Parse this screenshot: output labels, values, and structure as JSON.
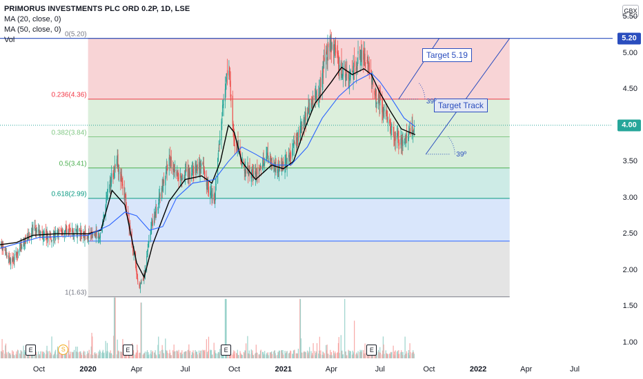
{
  "header": {
    "title": "PRIMORUS INVESTMENTS PLC ORD 0.2P, 1D, LSE",
    "studies": [
      "MA (20, close, 0)",
      "MA (50, close, 0)",
      "Vol"
    ]
  },
  "currency": "GBX",
  "price_axis": {
    "ticks": [
      "5.50",
      "5.00",
      "4.50",
      "4.00",
      "3.50",
      "3.00",
      "2.50",
      "2.00",
      "1.50",
      "1.00"
    ],
    "last_label": "4.00",
    "target_label": "5.20"
  },
  "time_axis": {
    "ticks": [
      {
        "label": "Oct",
        "bold": false
      },
      {
        "label": "2020",
        "bold": true
      },
      {
        "label": "Apr",
        "bold": false
      },
      {
        "label": "Jul",
        "bold": false
      },
      {
        "label": "Oct",
        "bold": false
      },
      {
        "label": "2021",
        "bold": true
      },
      {
        "label": "Apr",
        "bold": false
      },
      {
        "label": "Jul",
        "bold": false
      },
      {
        "label": "Oct",
        "bold": false
      },
      {
        "label": "2022",
        "bold": true
      },
      {
        "label": "Apr",
        "bold": false
      },
      {
        "label": "Jul",
        "bold": false
      }
    ]
  },
  "fib_levels": [
    {
      "label": "0(5.20)",
      "price": 5.2,
      "color": "#787b86"
    },
    {
      "label": "0.236(4.36)",
      "price": 4.36,
      "color": "#f23645"
    },
    {
      "label": "0.382(3.84)",
      "price": 3.84,
      "color": "#81c784"
    },
    {
      "label": "0.5(3.41)",
      "price": 3.41,
      "color": "#4caf50"
    },
    {
      "label": "0.618(2.99)",
      "price": 2.99,
      "color": "#089981"
    },
    {
      "label": "1(1.63)",
      "price": 1.63,
      "color": "#787b86"
    }
  ],
  "annotations": {
    "target": "Target 5.19",
    "track": "Target Track",
    "angle1": "39º",
    "angle2": "39º"
  },
  "events": [
    {
      "type": "E",
      "date": "2019-09"
    },
    {
      "type": "S",
      "date": "2019-11"
    },
    {
      "type": "E",
      "date": "2020-03"
    },
    {
      "type": "E",
      "date": "2020-09"
    },
    {
      "type": "E",
      "date": "2021-06"
    }
  ],
  "colors": {
    "up": "#26a69a",
    "down": "#ef5350",
    "ma20": "#000000",
    "ma50": "#2962ff",
    "drawing": "#2a4dbe"
  },
  "chart_data": {
    "type": "candlestick",
    "title": "PRIMORUS INVESTMENTS PLC ORD 0.2P, 1D, LSE",
    "x_range": [
      "2019-07-20",
      "2022-09-10"
    ],
    "y_range": [
      0.78,
      5.73
    ],
    "series": [
      {
        "name": "MA (20, close, 0)",
        "points": [
          [
            "2019-07-20",
            2.35
          ],
          [
            "2019-08-20",
            2.38
          ],
          [
            "2019-09-20",
            2.48
          ],
          [
            "2019-11-01",
            2.5
          ],
          [
            "2020-01-01",
            2.5
          ],
          [
            "2020-01-25",
            2.55
          ],
          [
            "2020-02-15",
            3.1
          ],
          [
            "2020-03-10",
            2.9
          ],
          [
            "2020-04-01",
            2.1
          ],
          [
            "2020-04-15",
            1.9
          ],
          [
            "2020-05-01",
            2.35
          ],
          [
            "2020-06-01",
            2.95
          ],
          [
            "2020-07-01",
            3.25
          ],
          [
            "2020-08-01",
            3.3
          ],
          [
            "2020-08-20",
            3.2
          ],
          [
            "2020-09-05",
            3.5
          ],
          [
            "2020-09-20",
            4.0
          ],
          [
            "2020-10-01",
            3.9
          ],
          [
            "2020-10-15",
            3.5
          ],
          [
            "2020-11-10",
            3.25
          ],
          [
            "2020-12-10",
            3.45
          ],
          [
            "2021-01-01",
            3.4
          ],
          [
            "2021-01-20",
            3.5
          ],
          [
            "2021-02-10",
            3.95
          ],
          [
            "2021-03-01",
            4.3
          ],
          [
            "2021-04-01",
            4.6
          ],
          [
            "2021-04-20",
            4.8
          ],
          [
            "2021-05-10",
            4.7
          ],
          [
            "2021-06-01",
            4.78
          ],
          [
            "2021-06-15",
            4.7
          ],
          [
            "2021-07-01",
            4.45
          ],
          [
            "2021-07-20",
            4.2
          ],
          [
            "2021-08-10",
            3.95
          ],
          [
            "2021-09-05",
            3.87
          ]
        ]
      },
      {
        "name": "MA (50, close, 0)",
        "points": [
          [
            "2019-07-20",
            2.3
          ],
          [
            "2019-10-01",
            2.45
          ],
          [
            "2020-01-01",
            2.48
          ],
          [
            "2020-02-10",
            2.62
          ],
          [
            "2020-03-10",
            2.8
          ],
          [
            "2020-04-01",
            2.75
          ],
          [
            "2020-04-25",
            2.55
          ],
          [
            "2020-05-20",
            2.6
          ],
          [
            "2020-06-15",
            3.0
          ],
          [
            "2020-07-15",
            3.2
          ],
          [
            "2020-08-25",
            3.25
          ],
          [
            "2020-09-20",
            3.5
          ],
          [
            "2020-10-15",
            3.7
          ],
          [
            "2020-11-10",
            3.6
          ],
          [
            "2020-12-15",
            3.45
          ],
          [
            "2021-01-15",
            3.45
          ],
          [
            "2021-02-15",
            3.7
          ],
          [
            "2021-03-15",
            4.1
          ],
          [
            "2021-04-15",
            4.4
          ],
          [
            "2021-05-15",
            4.6
          ],
          [
            "2021-06-15",
            4.72
          ],
          [
            "2021-07-01",
            4.6
          ],
          [
            "2021-07-20",
            4.4
          ],
          [
            "2021-08-15",
            4.1
          ],
          [
            "2021-09-05",
            3.98
          ]
        ]
      },
      {
        "name": "Vol",
        "type": "bar",
        "peaks": [
          [
            "2020-02-20",
            1.62
          ],
          [
            "2020-04-10",
            1.55
          ],
          [
            "2020-09-15",
            1.6
          ],
          [
            "2021-02-01",
            1.6
          ],
          [
            "2021-04-25",
            1.6
          ],
          [
            "2021-05-15",
            1.3
          ]
        ]
      }
    ],
    "price_path": [
      [
        "2019-07-20",
        2.35
      ],
      [
        "2019-08-10",
        2.1
      ],
      [
        "2019-08-25",
        2.3
      ],
      [
        "2019-09-20",
        2.55
      ],
      [
        "2019-10-20",
        2.45
      ],
      [
        "2019-11-20",
        2.55
      ],
      [
        "2020-01-01",
        2.48
      ],
      [
        "2020-01-25",
        2.5
      ],
      [
        "2020-02-10",
        3.2
      ],
      [
        "2020-02-25",
        3.5
      ],
      [
        "2020-03-10",
        3.0
      ],
      [
        "2020-03-25",
        2.3
      ],
      [
        "2020-04-05",
        1.75
      ],
      [
        "2020-04-15",
        1.9
      ],
      [
        "2020-04-25",
        2.5
      ],
      [
        "2020-05-10",
        2.9
      ],
      [
        "2020-06-01",
        3.5
      ],
      [
        "2020-06-20",
        3.3
      ],
      [
        "2020-07-10",
        3.35
      ],
      [
        "2020-08-01",
        3.45
      ],
      [
        "2020-08-15",
        3.1
      ],
      [
        "2020-08-25",
        3.0
      ],
      [
        "2020-09-10",
        4.3
      ],
      [
        "2020-09-20",
        4.8
      ],
      [
        "2020-10-01",
        3.8
      ],
      [
        "2020-10-20",
        3.4
      ],
      [
        "2020-11-10",
        3.3
      ],
      [
        "2020-12-01",
        3.6
      ],
      [
        "2020-12-20",
        3.4
      ],
      [
        "2021-01-10",
        3.5
      ],
      [
        "2021-01-25",
        3.8
      ],
      [
        "2021-02-15",
        4.2
      ],
      [
        "2021-03-10",
        4.5
      ],
      [
        "2021-03-25",
        5.05
      ],
      [
        "2021-04-05",
        5.1
      ],
      [
        "2021-04-20",
        4.8
      ],
      [
        "2021-05-05",
        4.6
      ],
      [
        "2021-05-25",
        5.0
      ],
      [
        "2021-06-10",
        4.8
      ],
      [
        "2021-06-25",
        4.4
      ],
      [
        "2021-07-10",
        4.2
      ],
      [
        "2021-07-25",
        3.9
      ],
      [
        "2021-08-10",
        3.75
      ],
      [
        "2021-08-25",
        3.85
      ],
      [
        "2021-09-05",
        4.0
      ]
    ],
    "fibonacci": {
      "high": 5.2,
      "low": 1.63,
      "from": "2020-01-01",
      "to": "2022-03-01"
    },
    "last_price": 4.0,
    "grid": false,
    "legend": "top-left"
  }
}
